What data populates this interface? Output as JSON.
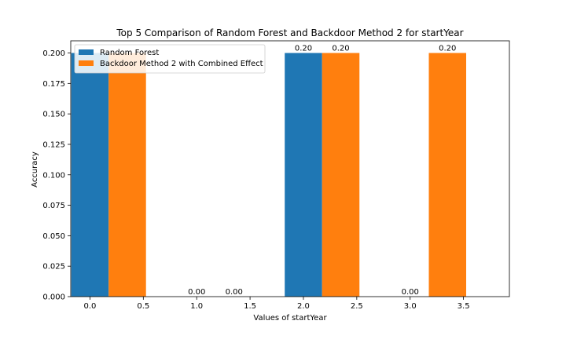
{
  "chart_data": {
    "type": "bar",
    "title": "Top 5 Comparison of Random Forest and Backdoor Method 2 for startYear",
    "xlabel": "Values of startYear",
    "ylabel": "Accuracy",
    "x_ticks": [
      "0.0",
      "0.5",
      "1.0",
      "1.5",
      "2.0",
      "2.5",
      "3.0",
      "3.5"
    ],
    "x_tick_values": [
      0.0,
      0.5,
      1.0,
      1.5,
      2.0,
      2.5,
      3.0,
      3.5
    ],
    "y_ticks": [
      "0.000",
      "0.025",
      "0.050",
      "0.075",
      "0.100",
      "0.125",
      "0.150",
      "0.175",
      "0.200"
    ],
    "y_tick_values": [
      0.0,
      0.025,
      0.05,
      0.075,
      0.1,
      0.125,
      0.15,
      0.175,
      0.2
    ],
    "xlim": [
      -0.18,
      3.93
    ],
    "ylim": [
      0,
      0.21
    ],
    "bar_width": 0.35,
    "legend_position": "upper-left",
    "series": [
      {
        "name": "Random Forest",
        "color": "#1f77b4",
        "x": [
          0,
          1,
          2,
          3
        ],
        "values": [
          0.2,
          0.0,
          0.2,
          0.0
        ],
        "labels": [
          "",
          "0.00",
          "0.20",
          "0.00"
        ]
      },
      {
        "name": "Backdoor Method 2 with Combined Effect",
        "color": "#ff7f0e",
        "x": [
          0.35,
          1.35,
          2.35,
          3.35
        ],
        "values": [
          0.2,
          0.0,
          0.2,
          0.2
        ],
        "labels": [
          "",
          "0.00",
          "0.20",
          "0.20"
        ]
      }
    ]
  }
}
